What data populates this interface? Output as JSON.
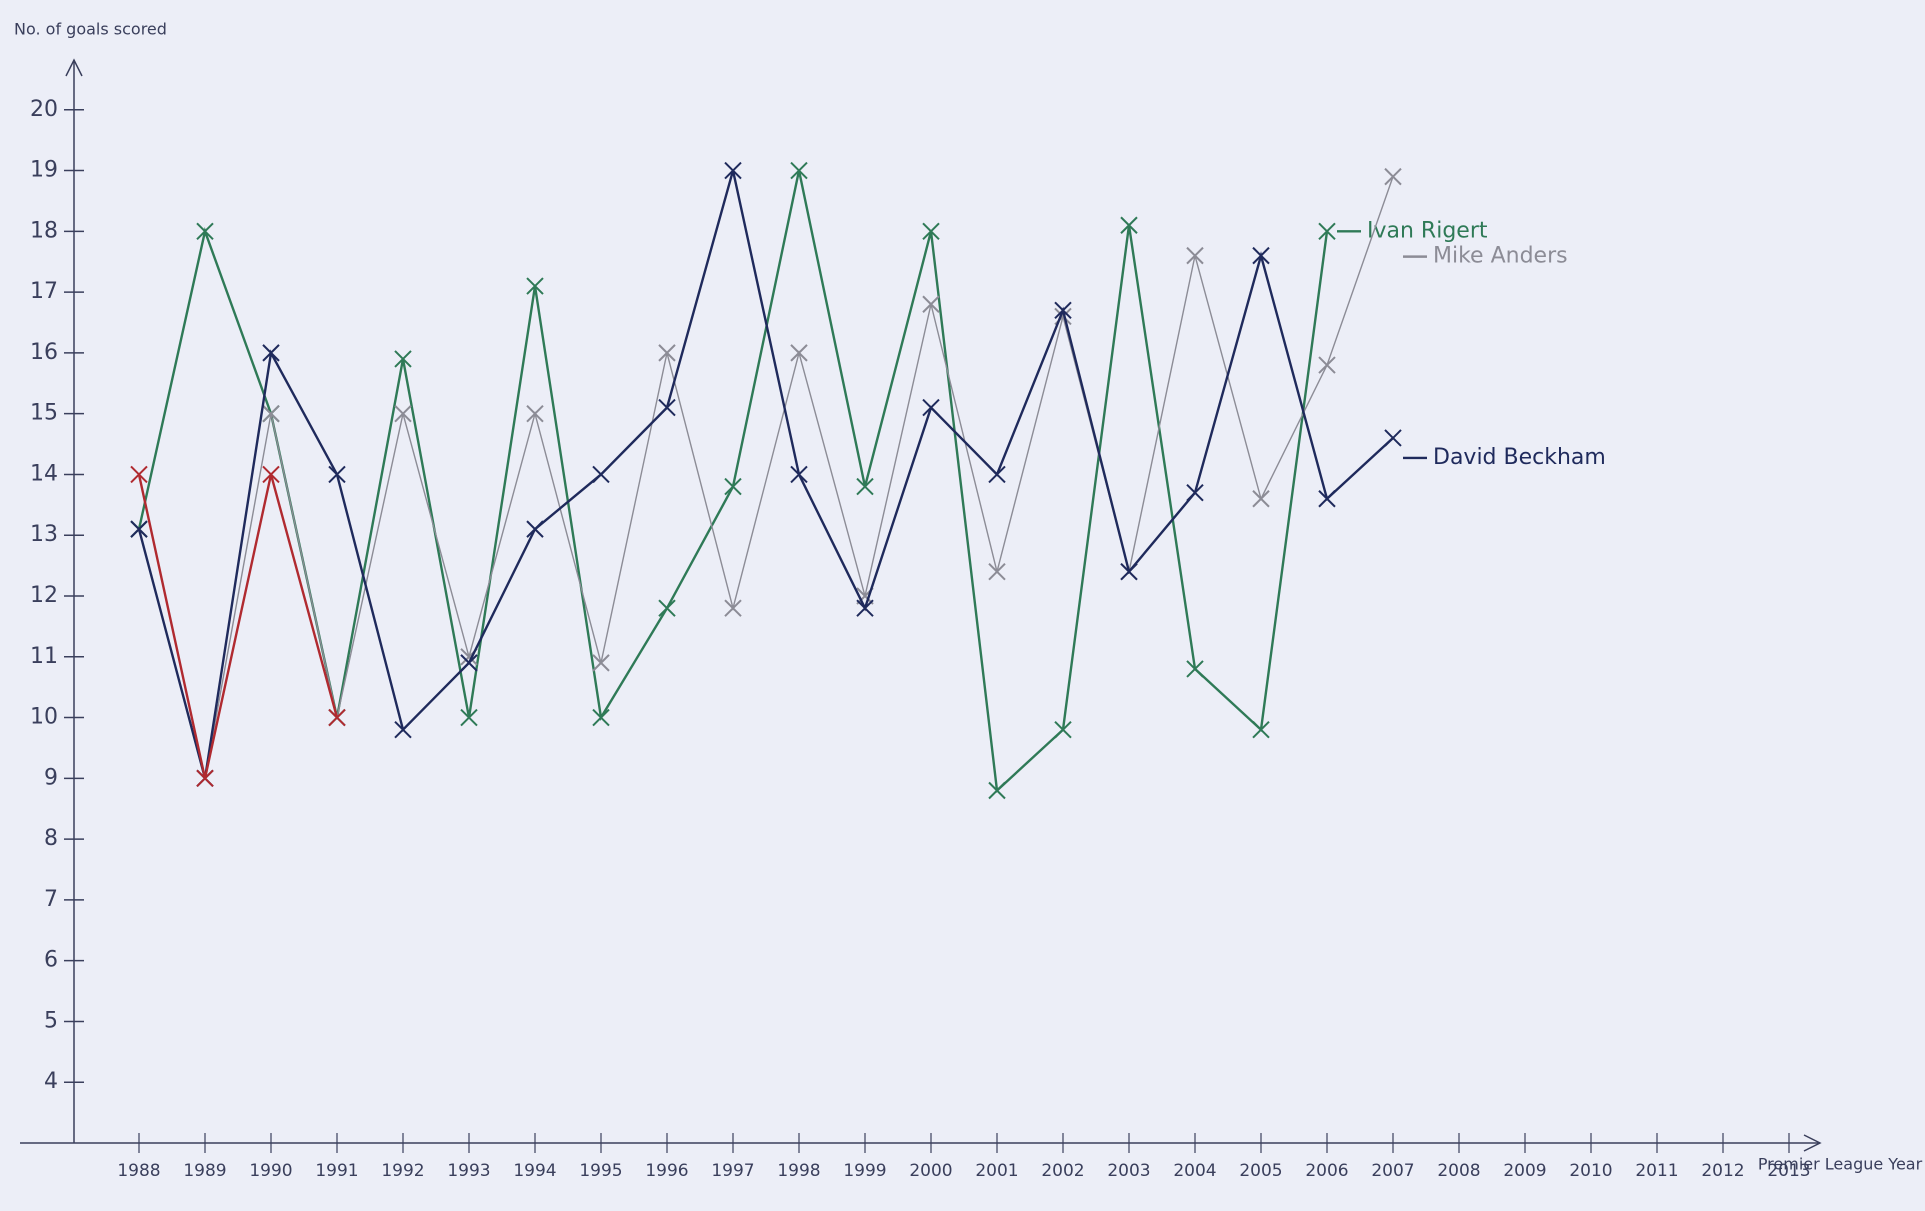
{
  "chart_data": {
    "type": "line",
    "y_label": "No. of goals scored",
    "x_label": "Premier League Year",
    "categories": [
      "1988",
      "1989",
      "1990",
      "1991",
      "1992",
      "1993",
      "1994",
      "1995",
      "1996",
      "1997",
      "1998",
      "1999",
      "2000",
      "2001",
      "2002",
      "2003",
      "2004",
      "2005",
      "2006",
      "2007",
      "2008",
      "2009",
      "2010",
      "2011",
      "2012",
      "2013"
    ],
    "ylim": [
      3,
      21
    ],
    "yticks": [
      4,
      5,
      6,
      7,
      8,
      9,
      10,
      11,
      12,
      13,
      14,
      15,
      16,
      17,
      18,
      19,
      20
    ],
    "series": [
      {
        "name": "Ivan Rigert",
        "color": "#2f7a57",
        "values": [
          13.1,
          18,
          15,
          10,
          15.9,
          10,
          17.1,
          10,
          11.8,
          13.8,
          19,
          13.8,
          18,
          8.8,
          9.8,
          18.1,
          10.8,
          9.8,
          18,
          null,
          null,
          null,
          null,
          null,
          null,
          null
        ]
      },
      {
        "name": "Mike Anders",
        "color": "#8c8c96",
        "values": [
          null,
          9,
          15,
          10,
          15,
          11,
          15,
          10.9,
          16,
          11.8,
          16,
          12,
          16.8,
          12.4,
          16.6,
          12.4,
          17.6,
          13.6,
          15.8,
          18.9,
          null,
          null,
          null,
          null,
          null,
          null
        ]
      },
      {
        "name": "David Beckham",
        "color": "#1f2a5c",
        "values": [
          13.1,
          9,
          16,
          14,
          9.8,
          10.9,
          13.1,
          14,
          15.1,
          19,
          14,
          11.8,
          15.1,
          14,
          16.7,
          12.4,
          13.7,
          17.6,
          13.6,
          14.6,
          null,
          null,
          null,
          null,
          null,
          null
        ]
      },
      {
        "color": "#b02a30",
        "values": [
          14,
          9,
          14,
          10,
          null,
          null,
          null,
          null,
          null,
          null,
          null,
          null,
          null,
          null,
          null,
          null,
          null,
          null,
          null,
          null,
          null,
          null,
          null,
          null,
          null,
          null
        ]
      }
    ]
  }
}
